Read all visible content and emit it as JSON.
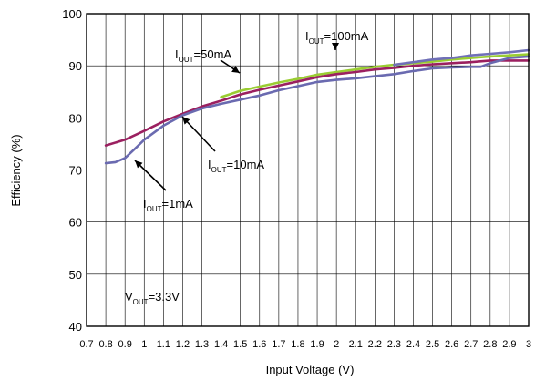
{
  "chart_data": {
    "type": "line",
    "title": "",
    "xlabel": "Input Voltage (V)",
    "ylabel": "Efficiency (%)",
    "xlim": [
      0.7,
      3.0
    ],
    "ylim": [
      40,
      100
    ],
    "grid": true,
    "x_ticks": [
      "0.7",
      "0.8",
      "0.9",
      "1",
      "1.1",
      "1.2",
      "1.3",
      "1.4",
      "1.5",
      "1.6",
      "1.7",
      "1.8",
      "1.9",
      "2",
      "2.1",
      "2.2",
      "2.3",
      "2.4",
      "2.5",
      "2.6",
      "2.7",
      "2.8",
      "2.9",
      "3"
    ],
    "y_ticks": [
      "40",
      "50",
      "60",
      "70",
      "80",
      "90",
      "100"
    ],
    "series": [
      {
        "color": "#9acd32",
        "x": [
          1.4,
          1.5,
          1.6,
          1.7,
          1.8,
          1.9,
          2.0,
          2.1,
          2.2,
          2.3,
          2.4,
          2.5,
          2.6,
          2.7,
          2.8,
          2.9,
          3.0
        ],
        "y": [
          84.0,
          85.2,
          86.0,
          86.8,
          87.5,
          88.3,
          88.8,
          89.3,
          89.8,
          90.2,
          90.5,
          90.8,
          91.2,
          91.5,
          91.8,
          92.0,
          92.2
        ]
      },
      {
        "color": "#7070b8",
        "x": [
          2.3,
          2.4,
          2.5,
          2.6,
          2.7,
          2.8,
          2.9,
          3.0
        ],
        "y": [
          90.2,
          90.7,
          91.2,
          91.5,
          92.0,
          92.3,
          92.6,
          93.0
        ]
      },
      {
        "color": "#9b2060",
        "x": [
          0.8,
          0.9,
          1.0,
          1.1,
          1.2,
          1.3,
          1.4,
          1.5,
          1.6,
          1.7,
          1.8,
          1.9,
          2.0,
          2.1,
          2.2,
          2.3,
          2.4,
          2.5,
          2.6,
          2.7,
          2.8,
          2.9,
          3.0
        ],
        "y": [
          74.7,
          75.8,
          77.5,
          79.3,
          80.8,
          82.2,
          83.3,
          84.5,
          85.4,
          86.2,
          87.0,
          87.8,
          88.4,
          88.8,
          89.3,
          89.6,
          90.0,
          90.3,
          90.5,
          90.7,
          91.0,
          91.0,
          91.0
        ]
      },
      {
        "color": "#6a6ab0",
        "x": [
          0.8,
          0.85,
          0.9,
          0.95,
          1.0,
          1.1,
          1.2,
          1.3,
          1.4,
          1.5,
          1.6,
          1.7,
          1.8,
          1.9,
          2.0,
          2.1,
          2.2,
          2.3,
          2.4,
          2.5,
          2.6,
          2.7,
          2.75,
          2.8,
          2.9,
          3.0
        ],
        "y": [
          71.3,
          71.5,
          72.3,
          74.0,
          75.8,
          78.5,
          80.5,
          81.8,
          82.7,
          83.5,
          84.3,
          85.3,
          86.1,
          86.9,
          87.3,
          87.6,
          88.0,
          88.4,
          89.0,
          89.5,
          89.7,
          89.8,
          89.8,
          90.5,
          91.5,
          91.8
        ]
      }
    ],
    "annotations": [
      {
        "prefix": "I",
        "sub": "OUT",
        "suffix": "=50mA"
      },
      {
        "prefix": "I",
        "sub": "OUT",
        "suffix": "=100mA"
      },
      {
        "prefix": "I",
        "sub": "OUT",
        "suffix": "=10mA"
      },
      {
        "prefix": "I",
        "sub": "OUT",
        "suffix": "=1mA"
      },
      {
        "prefix": "V",
        "sub": "OUT",
        "suffix": "=3.3V"
      }
    ]
  }
}
